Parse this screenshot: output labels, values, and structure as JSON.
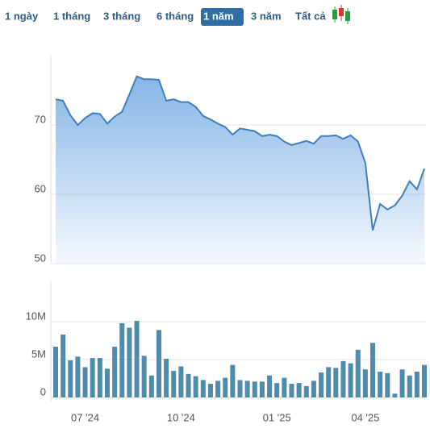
{
  "tabs": [
    "1 ngày",
    "1 tháng",
    "3 tháng",
    "6 tháng",
    "1 năm",
    "3 năm",
    "Tất cả"
  ],
  "selected_tab": 4,
  "chart_data": [
    {
      "type": "area",
      "color": "#3f7fbf",
      "categories": [
        null,
        null,
        null,
        null,
        "07 '24",
        null,
        null,
        null,
        null,
        null,
        null,
        null,
        null,
        null,
        null,
        null,
        null,
        "10 '24",
        null,
        null,
        null,
        null,
        null,
        null,
        null,
        null,
        null,
        null,
        null,
        null,
        "01 '25",
        null,
        null,
        null,
        null,
        null,
        null,
        null,
        null,
        null,
        null,
        null,
        "04 '25",
        null,
        null,
        null,
        null,
        null,
        null,
        null,
        null
      ],
      "values": [
        73.7,
        73.5,
        71.4,
        70,
        71,
        71.7,
        71.6,
        70.2,
        71.2,
        71.9,
        74.4,
        77,
        76.6,
        76.6,
        76.5,
        73.5,
        73.7,
        73.3,
        73.3,
        72.6,
        71.3,
        70.8,
        70.2,
        69.7,
        68.6,
        69.5,
        69.3,
        69.1,
        68.4,
        68.6,
        68.4,
        67.6,
        67.1,
        67.4,
        67.7,
        67.3,
        68.4,
        68.4,
        68.5,
        68,
        68.5,
        67.6,
        64.5,
        54.8,
        58.6,
        57.8,
        58.4,
        59.8,
        61.9,
        60.7,
        63.7
      ],
      "ylim": [
        50,
        80
      ],
      "yticks": [
        50,
        60,
        70
      ],
      "grid": true
    },
    {
      "type": "bar",
      "color": "#4f8cab",
      "values": [
        6700000,
        8300000,
        4900000,
        5400000,
        4000000,
        5200000,
        5200000,
        3800000,
        6700000,
        9800000,
        9200000,
        10100000,
        5500000,
        2900000,
        8900000,
        5100000,
        3500000,
        4100000,
        3100000,
        2800000,
        2300000,
        1800000,
        2200000,
        2600000,
        4300000,
        2300000,
        2200000,
        2100000,
        2100000,
        2900000,
        1900000,
        2600000,
        1800000,
        1900000,
        1500000,
        2200000,
        3300000,
        4000000,
        3900000,
        4800000,
        4500000,
        6300000,
        3700000,
        7200000,
        3400000,
        3200000,
        500000,
        3700000,
        2900000,
        3400000,
        4300000
      ],
      "ylim": [
        0,
        15000000
      ],
      "yticks": [
        {
          "value": 0,
          "label": "0"
        },
        {
          "value": 5000000,
          "label": "5M"
        },
        {
          "value": 10000000,
          "label": "10M"
        }
      ],
      "grid": true
    }
  ]
}
